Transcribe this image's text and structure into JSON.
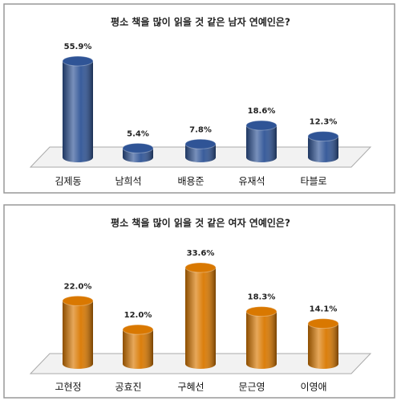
{
  "chart_data": [
    {
      "type": "bar",
      "title": "평소 책을 많이 읽을 것 같은 남자 연예인은?",
      "categories": [
        "김제동",
        "남희석",
        "배용준",
        "유재석",
        "타블로"
      ],
      "values": [
        55.9,
        5.4,
        7.8,
        18.6,
        12.3
      ],
      "value_labels": [
        "55.9%",
        "5.4%",
        "7.8%",
        "18.6%",
        "12.3%"
      ],
      "color": "#2f5496"
    },
    {
      "type": "bar",
      "title": "평소 책을 많이 읽을 것 같은 여자 연예인은?",
      "categories": [
        "고현정",
        "공효진",
        "구혜선",
        "문근영",
        "이영애"
      ],
      "values": [
        22.0,
        12.0,
        33.6,
        18.3,
        14.1
      ],
      "value_labels": [
        "22.0%",
        "12.0%",
        "33.6%",
        "18.3%",
        "14.1%"
      ],
      "color": "#d97800"
    }
  ]
}
